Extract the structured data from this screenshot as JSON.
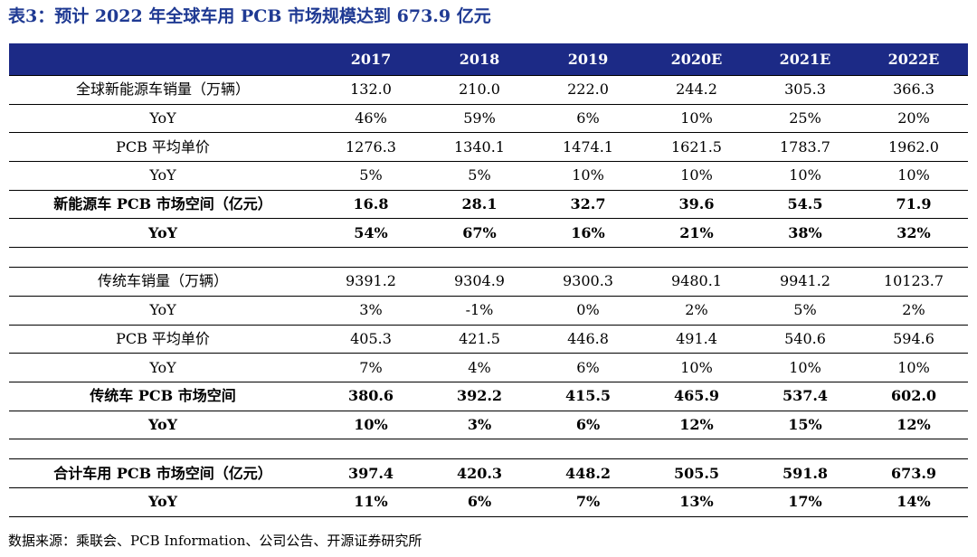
{
  "title": "表3：预计 2022 年全球车用 PCB 市场规模达到 673.9 亿元",
  "headers": [
    "",
    "2017",
    "2018",
    "2019",
    "2020E",
    "2021E",
    "2022E"
  ],
  "rows": [
    {
      "label": "全球新能源车销量（万辆）",
      "values": [
        "132.0",
        "210.0",
        "222.0",
        "244.2",
        "305.3",
        "366.3"
      ],
      "bold": false
    },
    {
      "label": "YoY",
      "values": [
        "46%",
        "59%",
        "6%",
        "10%",
        "25%",
        "20%"
      ],
      "bold": false
    },
    {
      "label": "PCB 平均单价",
      "values": [
        "1276.3",
        "1340.1",
        "1474.1",
        "1621.5",
        "1783.7",
        "1962.0"
      ],
      "bold": false
    },
    {
      "label": "YoY",
      "values": [
        "5%",
        "5%",
        "10%",
        "10%",
        "10%",
        "10%"
      ],
      "bold": false
    },
    {
      "label": "新能源车 PCB 市场空间（亿元）",
      "values": [
        "16.8",
        "28.1",
        "32.7",
        "39.6",
        "54.5",
        "71.9"
      ],
      "bold": true
    },
    {
      "label": "YoY",
      "values": [
        "54%",
        "67%",
        "16%",
        "21%",
        "38%",
        "32%"
      ],
      "bold": true
    },
    {
      "blank": true
    },
    {
      "label": "传统车销量（万辆）",
      "values": [
        "9391.2",
        "9304.9",
        "9300.3",
        "9480.1",
        "9941.2",
        "10123.7"
      ],
      "bold": false
    },
    {
      "label": "YoY",
      "values": [
        "3%",
        "-1%",
        "0%",
        "2%",
        "5%",
        "2%"
      ],
      "bold": false
    },
    {
      "label": "PCB 平均单价",
      "values": [
        "405.3",
        "421.5",
        "446.8",
        "491.4",
        "540.6",
        "594.6"
      ],
      "bold": false
    },
    {
      "label": "YoY",
      "values": [
        "7%",
        "4%",
        "6%",
        "10%",
        "10%",
        "10%"
      ],
      "bold": false
    },
    {
      "label": "传统车 PCB 市场空间",
      "values": [
        "380.6",
        "392.2",
        "415.5",
        "465.9",
        "537.4",
        "602.0"
      ],
      "bold": true
    },
    {
      "label": "YoY",
      "values": [
        "10%",
        "3%",
        "6%",
        "12%",
        "15%",
        "12%"
      ],
      "bold": true
    },
    {
      "blank": true
    },
    {
      "label": "合计车用 PCB 市场空间（亿元）",
      "values": [
        "397.4",
        "420.3",
        "448.2",
        "505.5",
        "591.8",
        "673.9"
      ],
      "bold": true
    },
    {
      "label": "YoY",
      "values": [
        "11%",
        "6%",
        "7%",
        "13%",
        "17%",
        "14%"
      ],
      "bold": true
    }
  ],
  "source": "数据来源：乘联会、PCB Information、公司公告、开源证券研究所",
  "colors": {
    "title": "#1f3a93",
    "header_bg": "#1c2a86",
    "header_text": "#ffffff"
  }
}
